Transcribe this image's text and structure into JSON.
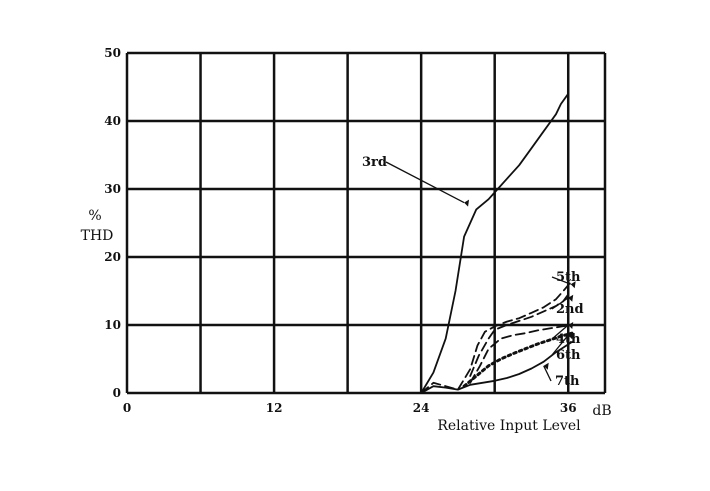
{
  "chart_data": {
    "type": "line",
    "xlabel": "Relative Input Level",
    "xunit": "dB",
    "ylabel_lines": [
      "%",
      "THD"
    ],
    "xlim": [
      0,
      39
    ],
    "ylim": [
      0,
      50
    ],
    "x_ticks": [
      0,
      12,
      24,
      36
    ],
    "y_ticks": [
      0,
      10,
      20,
      30,
      40,
      50
    ],
    "x_tick_labels": [
      "0",
      "12",
      "24",
      "36"
    ],
    "y_tick_labels": [
      "0",
      "10",
      "20",
      "30",
      "40",
      "50"
    ],
    "grid": true,
    "series": [
      {
        "name": "3rd",
        "style": "solid",
        "x": [
          24,
          25,
          26,
          26.8,
          27.5,
          28.5,
          29.5,
          30,
          31,
          32,
          33,
          34,
          35,
          35.4,
          36
        ],
        "y": [
          0,
          3,
          8,
          15,
          23,
          27,
          28.5,
          29.5,
          31.5,
          33.5,
          36,
          38.5,
          41,
          42.5,
          44
        ]
      },
      {
        "name": "5th",
        "style": "dashed",
        "x": [
          24,
          25,
          26,
          27,
          28,
          28.6,
          29.2,
          30,
          31,
          32,
          33,
          34,
          35,
          35.6,
          36.3
        ],
        "y": [
          0,
          1.5,
          1,
          0.5,
          3.5,
          7,
          9,
          9.8,
          10.5,
          11,
          11.8,
          12.6,
          13.8,
          15,
          16.5
        ]
      },
      {
        "name": "2nd",
        "style": "dashed",
        "x": [
          28,
          28.7,
          29.5,
          30,
          31,
          32,
          33,
          34,
          35,
          35.6,
          36.2
        ],
        "y": [
          2.5,
          5.5,
          8,
          9.3,
          10,
          10.6,
          11.2,
          12,
          12.8,
          13.5,
          15
        ]
      },
      {
        "name": "4th",
        "style": "dashed",
        "x": [
          28,
          28.8,
          29.5,
          30.5,
          31.5,
          32.5,
          33.5,
          34.5,
          35.5,
          36.3
        ],
        "y": [
          1.5,
          4,
          6.5,
          8,
          8.5,
          8.8,
          9.2,
          9.5,
          9.8,
          10
        ]
      },
      {
        "name": "6th",
        "style": "dotted",
        "x": [
          27.5,
          28.5,
          29.5,
          30.5,
          31.5,
          32.5,
          33.5,
          34.5,
          35.3,
          36.3
        ],
        "y": [
          1,
          2.5,
          4,
          5,
          5.8,
          6.5,
          7.2,
          7.8,
          8.3,
          8.8
        ]
      },
      {
        "name": "7th",
        "style": "solid",
        "x": [
          24,
          25,
          26,
          27,
          28,
          29,
          30,
          31,
          32,
          33,
          34,
          35,
          36.3
        ],
        "y": [
          0,
          1,
          0.8,
          0.5,
          1.2,
          1.5,
          1.8,
          2.2,
          2.8,
          3.6,
          4.6,
          6,
          7.5
        ]
      }
    ],
    "annotations": [
      {
        "text": "3rd",
        "series": "3rd",
        "x": 27.5,
        "y": 28
      },
      {
        "text": "5th",
        "series": "5th",
        "x": 36.2,
        "y": 16
      },
      {
        "text": "2nd",
        "series": "2nd",
        "x": 36,
        "y": 14
      },
      {
        "text": "4th",
        "series": "4th",
        "x": 36,
        "y": 10
      },
      {
        "text": "6th",
        "series": "6th",
        "x": 36,
        "y": 8.5
      },
      {
        "text": "7th",
        "series": "7th",
        "x": 34,
        "y": 4
      }
    ]
  }
}
